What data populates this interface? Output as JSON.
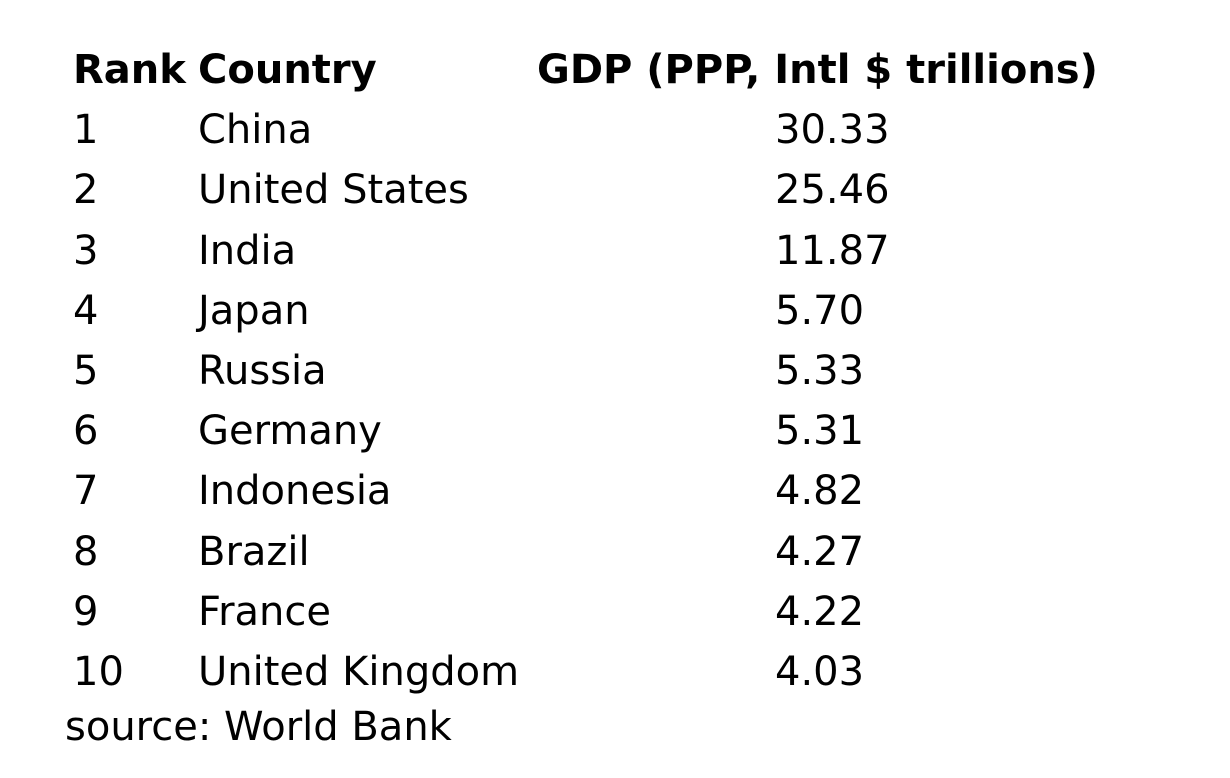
{
  "chart_data": {
    "type": "table",
    "columns": [
      "Rank",
      "Country",
      "GDP (PPP, Intl $ trillions)"
    ],
    "rows": [
      {
        "rank": "1",
        "country": "China",
        "gdp": "30.33"
      },
      {
        "rank": "2",
        "country": "United States",
        "gdp": "25.46"
      },
      {
        "rank": "3",
        "country": "India",
        "gdp": "11.87"
      },
      {
        "rank": "4",
        "country": "Japan",
        "gdp": "5.70"
      },
      {
        "rank": "5",
        "country": "Russia",
        "gdp": "5.33"
      },
      {
        "rank": "6",
        "country": "Germany",
        "gdp": "5.31"
      },
      {
        "rank": "7",
        "country": "Indonesia",
        "gdp": "4.82"
      },
      {
        "rank": "8",
        "country": "Brazil",
        "gdp": "4.27"
      },
      {
        "rank": "9",
        "country": "France",
        "gdp": "4.22"
      },
      {
        "rank": "10",
        "country": "United Kingdom",
        "gdp": "4.03"
      }
    ],
    "source": "source: World Bank"
  }
}
